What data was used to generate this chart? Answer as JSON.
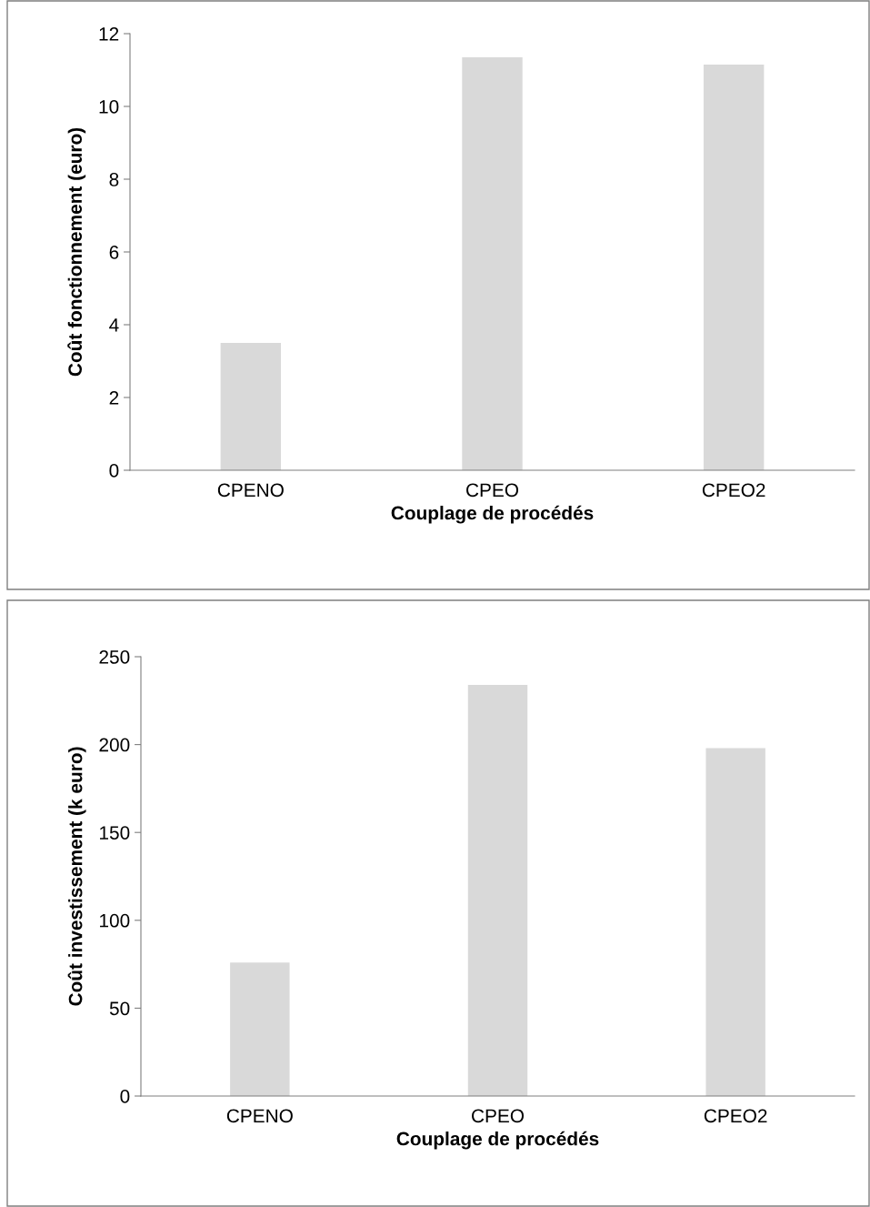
{
  "chart_data": [
    {
      "type": "bar",
      "xlabel": "Couplage de procédés",
      "ylabel": "Coût fonctionnement (euro)",
      "categories": [
        "CPENO",
        "CPEO",
        "CPEO2"
      ],
      "values": [
        3.5,
        11.35,
        11.15
      ],
      "color": "#d9d9d9",
      "ylim": [
        0,
        12
      ],
      "yticks": [
        0,
        2,
        4,
        6,
        8,
        10,
        12
      ],
      "grid": false,
      "legend": false
    },
    {
      "type": "bar",
      "xlabel": "Couplage de procédés",
      "ylabel": "Coût investissement (k euro)",
      "categories": [
        "CPENO",
        "CPEO",
        "CPEO2"
      ],
      "values": [
        76,
        234,
        198
      ],
      "color": "#d9d9d9",
      "ylim": [
        0,
        250
      ],
      "yticks": [
        0,
        50,
        100,
        150,
        200,
        250
      ],
      "grid": false,
      "legend": false
    }
  ]
}
